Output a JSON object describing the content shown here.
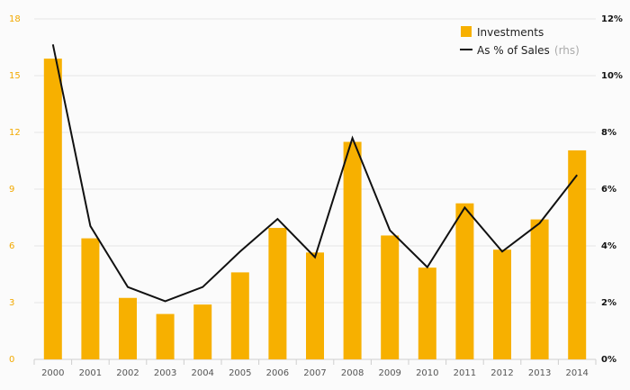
{
  "chart_data": {
    "type": "bar",
    "categories": [
      "2000",
      "2001",
      "2002",
      "2003",
      "2004",
      "2005",
      "2006",
      "2007",
      "2008",
      "2009",
      "2010",
      "2011",
      "2012",
      "2013",
      "2014"
    ],
    "series": [
      {
        "name": "Investments",
        "type": "bar",
        "axis": "left",
        "color": "#f7b000",
        "values": [
          15.9,
          6.4,
          3.25,
          2.4,
          2.9,
          4.6,
          6.95,
          5.65,
          11.5,
          6.55,
          4.85,
          8.25,
          5.8,
          7.4,
          11.05
        ]
      },
      {
        "name": "As % of Sales",
        "name_suffix": "(rhs)",
        "type": "line",
        "axis": "right",
        "color": "#111111",
        "values": [
          11.1,
          4.7,
          2.55,
          2.05,
          2.55,
          3.8,
          4.95,
          3.6,
          7.8,
          4.55,
          3.25,
          5.35,
          3.8,
          4.8,
          6.5
        ]
      }
    ],
    "y_left": {
      "ticks": [
        "0",
        "3",
        "6",
        "9",
        "12",
        "15",
        "18"
      ],
      "ylim": [
        0,
        18
      ]
    },
    "y_right": {
      "ticks": [
        "0%",
        "2%",
        "4%",
        "6%",
        "8%",
        "10%",
        "12%"
      ],
      "ylim": [
        0,
        12
      ]
    },
    "grid": true,
    "legend_position": "top-right",
    "title": "",
    "xlabel": "",
    "ylabel": ""
  }
}
